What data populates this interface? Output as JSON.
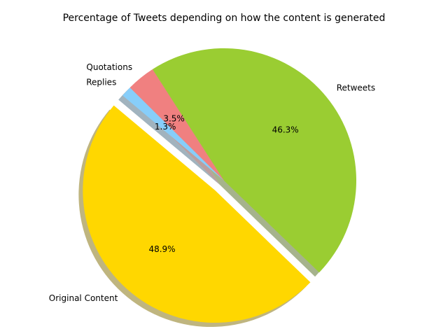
{
  "chart_data": {
    "type": "pie",
    "title": "Percentage of Tweets depending on how the content is generated",
    "slices": [
      {
        "label": "Original Content",
        "value": 48.9,
        "pct_label": "48.9%",
        "color": "#FFD700",
        "exploded": true
      },
      {
        "label": "Retweets",
        "value": 46.3,
        "pct_label": "46.3%",
        "color": "#9ACD32",
        "exploded": false
      },
      {
        "label": "Quotations",
        "value": 3.5,
        "pct_label": "3.5%",
        "color": "#F08080",
        "exploded": false
      },
      {
        "label": "Replies",
        "value": 1.3,
        "pct_label": "1.3%",
        "color": "#87CEFA",
        "exploded": false
      }
    ],
    "start_angle": 140,
    "shadow": true,
    "legend": "none"
  }
}
